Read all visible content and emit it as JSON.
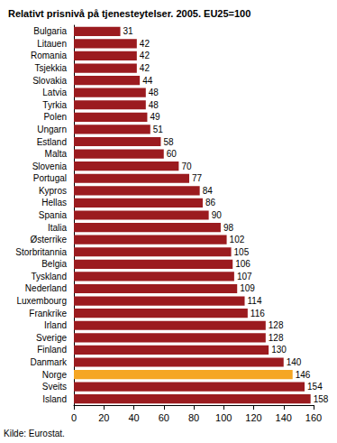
{
  "chart_data": {
    "type": "bar",
    "orientation": "horizontal",
    "title": "Relativt prisnivå på tjenesteytelser. 2005. EU25=100",
    "source": "Kilde: Eurostat.",
    "categories": [
      "Bulgaria",
      "Litauen",
      "Romania",
      "Tsjekkia",
      "Slovakia",
      "Latvia",
      "Tyrkia",
      "Polen",
      "Ungarn",
      "Estland",
      "Malta",
      "Slovenia",
      "Portugal",
      "Kypros",
      "Hellas",
      "Spania",
      "Italia",
      "Østerrike",
      "Storbritannia",
      "Belgia",
      "Tyskland",
      "Nederland",
      "Luxembourg",
      "Frankrike",
      "Irland",
      "Sverige",
      "Finland",
      "Danmark",
      "Norge",
      "Sveits",
      "Island"
    ],
    "values": [
      31,
      42,
      42,
      42,
      44,
      48,
      48,
      49,
      51,
      58,
      60,
      70,
      77,
      84,
      86,
      90,
      98,
      102,
      105,
      106,
      107,
      109,
      114,
      116,
      128,
      128,
      130,
      140,
      146,
      154,
      158
    ],
    "colors": [
      "#9b1b1f",
      "#9b1b1f",
      "#9b1b1f",
      "#9b1b1f",
      "#9b1b1f",
      "#9b1b1f",
      "#9b1b1f",
      "#9b1b1f",
      "#9b1b1f",
      "#9b1b1f",
      "#9b1b1f",
      "#9b1b1f",
      "#9b1b1f",
      "#9b1b1f",
      "#9b1b1f",
      "#9b1b1f",
      "#9b1b1f",
      "#9b1b1f",
      "#9b1b1f",
      "#9b1b1f",
      "#9b1b1f",
      "#9b1b1f",
      "#9b1b1f",
      "#9b1b1f",
      "#9b1b1f",
      "#9b1b1f",
      "#9b1b1f",
      "#9b1b1f",
      "#f5a623",
      "#9b1b1f",
      "#9b1b1f"
    ],
    "xlim": [
      0,
      160
    ],
    "xticks": [
      0,
      20,
      40,
      60,
      80,
      100,
      120,
      140,
      160
    ],
    "data_labels": true,
    "grid": false
  }
}
